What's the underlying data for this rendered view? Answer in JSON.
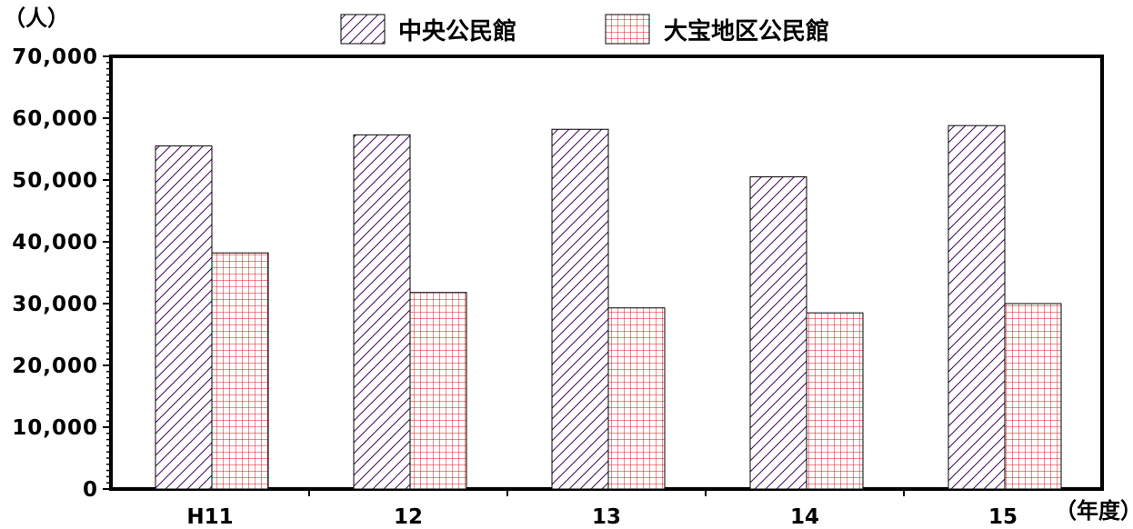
{
  "chart_data": {
    "type": "bar",
    "y_unit_label": "（人）",
    "x_unit_label": "（年度）",
    "categories": [
      "H11",
      "12",
      "13",
      "14",
      "15"
    ],
    "ylim": [
      0,
      70000
    ],
    "yticks": [
      0,
      10000,
      20000,
      30000,
      40000,
      50000,
      60000,
      70000
    ],
    "ytick_labels": [
      "0",
      "10,000",
      "20,000",
      "30,000",
      "40,000",
      "50,000",
      "60,000",
      "70,000"
    ],
    "grid": false,
    "legend_position": "top-center",
    "series": [
      {
        "name": "中央公民館",
        "pattern": "diagonal-hatch",
        "color": "#4b1060",
        "values": [
          55500,
          57300,
          58200,
          50500,
          58800
        ]
      },
      {
        "name": "大宝地区公民館",
        "pattern": "grid",
        "color": "#e0141e",
        "values": [
          38200,
          31800,
          29300,
          28500,
          30000
        ]
      }
    ]
  }
}
